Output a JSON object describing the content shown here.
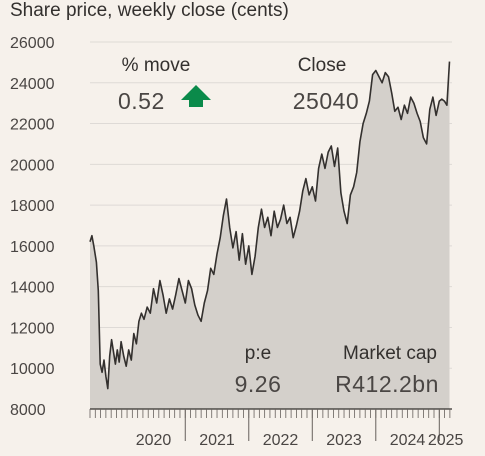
{
  "title": "Share price, weekly close (cents)",
  "stats": {
    "move_label": "% move",
    "move_value": "0.52",
    "move_direction": "up",
    "move_color": "#0a8a4a",
    "close_label": "Close",
    "close_value": "25040",
    "pe_label": "p:e",
    "pe_value": "9.26",
    "mcap_label": "Market cap",
    "mcap_value": "R412.2bn"
  },
  "chart_data": {
    "type": "area",
    "title": "Share price, weekly close (cents)",
    "xlabel": "",
    "ylabel": "",
    "ylim": [
      8000,
      26000
    ],
    "yticks": [
      8000,
      10000,
      12000,
      14000,
      16000,
      18000,
      20000,
      22000,
      24000,
      26000
    ],
    "ytick_labels": [
      "8000",
      "10000",
      "12000",
      "14000",
      "16000",
      "18000",
      "20000",
      "22000",
      "24000",
      "26000"
    ],
    "xlim": [
      2019.5,
      2025.2
    ],
    "xticks": [
      2020,
      2021,
      2022,
      2023,
      2024,
      2025
    ],
    "xtick_labels": [
      "2020",
      "2021",
      "2022",
      "2023",
      "2024",
      "2025"
    ],
    "grid": true,
    "line_color": "#33302e",
    "fill_color": "#d4d0cb",
    "series": [
      {
        "x": [
          2019.5,
          2019.53,
          2019.56,
          2019.6,
          2019.63,
          2019.66,
          2019.69,
          2019.72,
          2019.75,
          2019.78,
          2019.81,
          2019.84,
          2019.87,
          2019.9,
          2019.93,
          2019.96,
          2019.99,
          2020.03,
          2020.07,
          2020.11,
          2020.15,
          2020.19,
          2020.23,
          2020.27,
          2020.31,
          2020.35,
          2020.4,
          2020.45,
          2020.5,
          2020.55,
          2020.6,
          2020.65,
          2020.7,
          2020.75,
          2020.8,
          2020.85,
          2020.9,
          2020.95,
          2021.0,
          2021.05,
          2021.1,
          2021.15,
          2021.2,
          2021.25,
          2021.3,
          2021.35,
          2021.4,
          2021.45,
          2021.5,
          2021.55,
          2021.6,
          2021.65,
          2021.7,
          2021.75,
          2021.8,
          2021.85,
          2021.9,
          2021.95,
          2022.0,
          2022.05,
          2022.1,
          2022.15,
          2022.2,
          2022.25,
          2022.3,
          2022.35,
          2022.4,
          2022.45,
          2022.5,
          2022.55,
          2022.6,
          2022.65,
          2022.7,
          2022.75,
          2022.8,
          2022.85,
          2022.9,
          2022.95,
          2023.0,
          2023.05,
          2023.1,
          2023.15,
          2023.2,
          2023.25,
          2023.3,
          2023.35,
          2023.4,
          2023.45,
          2023.5,
          2023.55,
          2023.6,
          2023.65,
          2023.7,
          2023.75,
          2023.8,
          2023.85,
          2023.9,
          2023.95,
          2024.0,
          2024.05,
          2024.1,
          2024.15,
          2024.2,
          2024.25,
          2024.3,
          2024.35,
          2024.4,
          2024.45,
          2024.5,
          2024.55,
          2024.6,
          2024.65,
          2024.7,
          2024.75,
          2024.8,
          2024.85,
          2024.9,
          2024.95,
          2025.0,
          2025.04,
          2025.08,
          2025.12,
          2025.16
        ],
        "y": [
          16200,
          16500,
          16000,
          15200,
          13800,
          10200,
          9800,
          10400,
          9600,
          9000,
          10600,
          11400,
          10800,
          10200,
          10900,
          10300,
          11300,
          10600,
          10100,
          10900,
          10400,
          11700,
          11200,
          12300,
          12700,
          12400,
          13000,
          12700,
          13900,
          13200,
          14300,
          13600,
          12700,
          13400,
          12900,
          13600,
          14400,
          13800,
          13200,
          14300,
          13900,
          13100,
          12600,
          12300,
          13200,
          13800,
          14900,
          14600,
          15600,
          16400,
          17500,
          18300,
          16900,
          15900,
          16700,
          15300,
          16600,
          15100,
          16000,
          14600,
          15500,
          16900,
          17800,
          16900,
          17400,
          16500,
          17700,
          16900,
          17300,
          18000,
          17100,
          17400,
          16400,
          17000,
          17700,
          18700,
          19300,
          18500,
          18900,
          18200,
          19800,
          20500,
          19800,
          20600,
          20900,
          19900,
          20800,
          18600,
          17700,
          17100,
          18500,
          18900,
          19600,
          21100,
          22000,
          22500,
          23100,
          24400,
          24600,
          24300,
          24000,
          24500,
          24300,
          23500,
          22600,
          22800,
          22200,
          22900,
          22500,
          23300,
          23000,
          22500,
          22100,
          21300,
          21000,
          22700,
          23300,
          22400,
          23100,
          23200,
          23100,
          22900,
          25040
        ]
      }
    ]
  }
}
